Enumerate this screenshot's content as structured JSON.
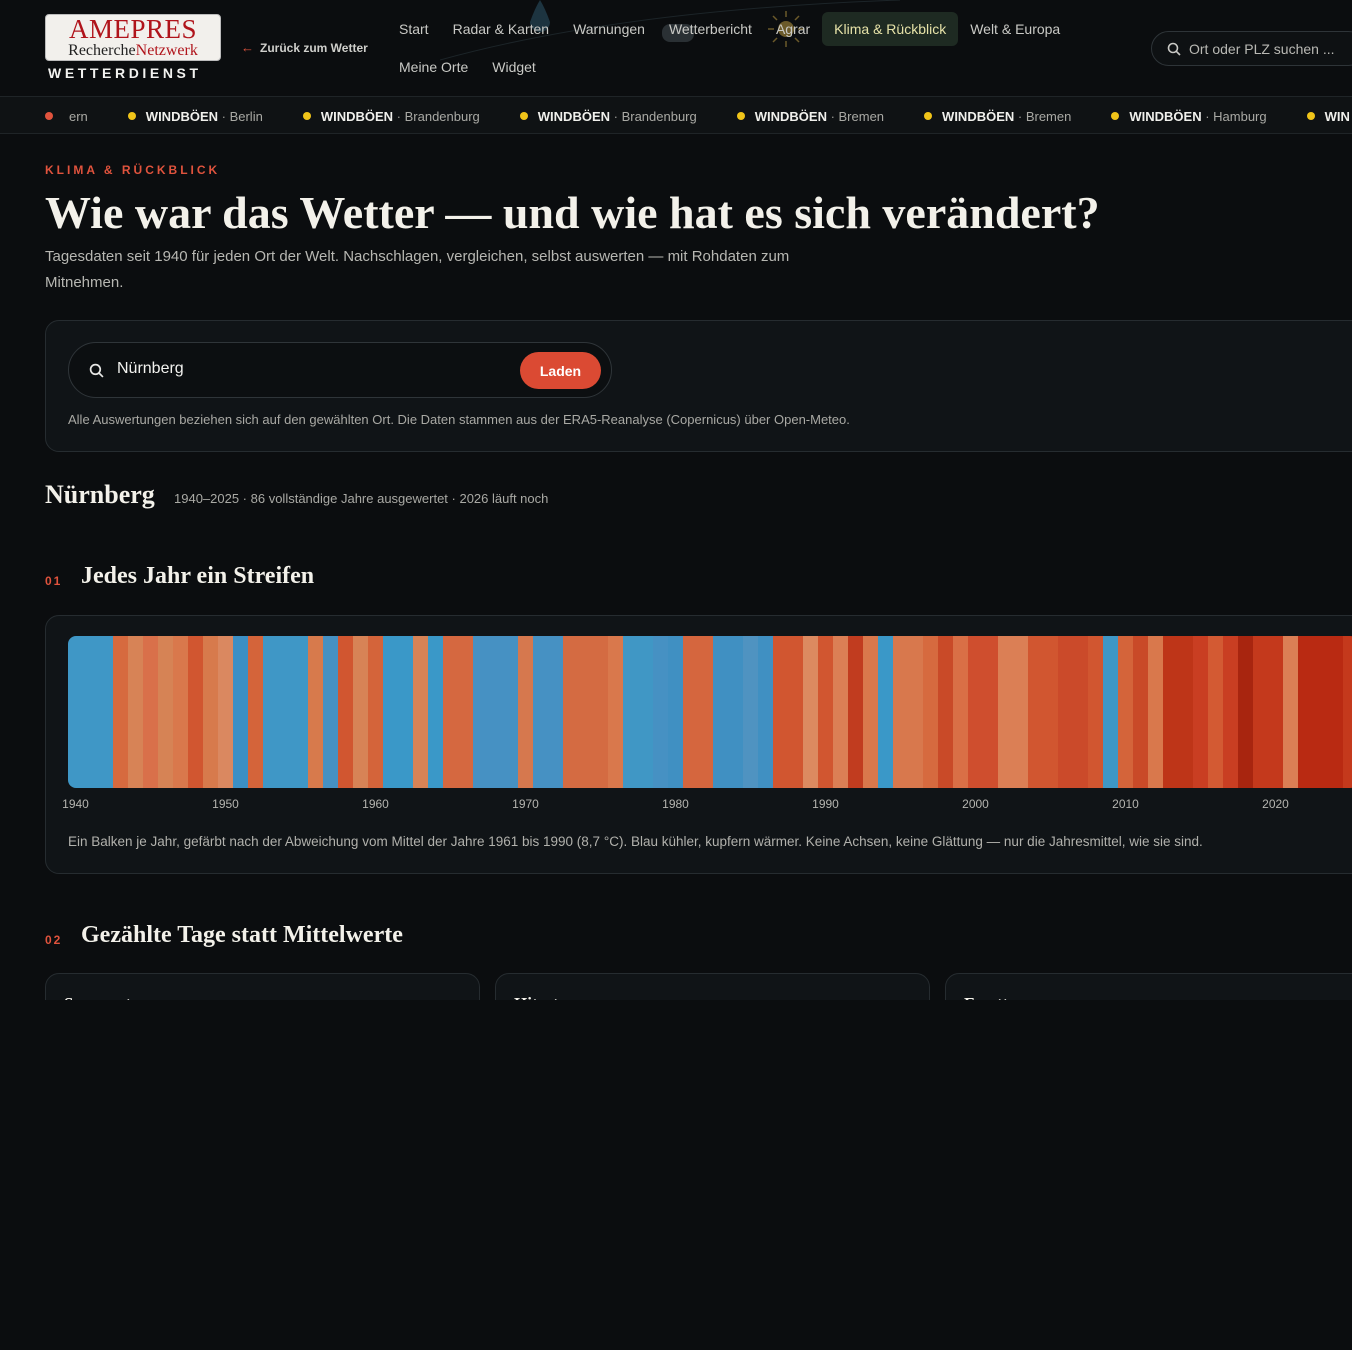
{
  "header": {
    "logo": {
      "brand": "AMEPRES",
      "line2_a": "Recherche",
      "line2_b": "Netzwerk",
      "subtitle": "WETTERDIENST"
    },
    "back_link": "Zurück zum Wetter",
    "nav_row1": [
      "Start",
      "Radar & Karten",
      "Warnungen",
      "Wetterbericht",
      "Agrar",
      "Klima & Rückblick",
      "Welt & Europa"
    ],
    "nav_row2": [
      "Meine Orte",
      "Widget"
    ],
    "active_nav": "Klima & Rückblick",
    "search_placeholder": "Ort oder PLZ suchen ..."
  },
  "ticker": {
    "first_fragment": "ern",
    "items": [
      {
        "type": "WINDBÖEN",
        "region": "Berlin"
      },
      {
        "type": "WINDBÖEN",
        "region": "Brandenburg"
      },
      {
        "type": "WINDBÖEN",
        "region": "Brandenburg"
      },
      {
        "type": "WINDBÖEN",
        "region": "Bremen"
      },
      {
        "type": "WINDBÖEN",
        "region": "Bremen"
      },
      {
        "type": "WINDBÖEN",
        "region": "Hamburg"
      },
      {
        "type": "WIN",
        "region": ""
      }
    ]
  },
  "hero": {
    "eyebrow": "KLIMA & RÜCKBLICK",
    "title": "Wie war das Wetter — und wie hat es sich verändert?",
    "lede": "Tagesdaten seit 1940 für jeden Ort der Welt. Nachschlagen, vergleichen, selbst auswerten — mit Rohdaten zum Mitnehmen."
  },
  "search": {
    "value": "Nürnberg",
    "button": "Laden",
    "note": "Alle Auswertungen beziehen sich auf den gewählten Ort. Die Daten stammen aus der ERA5-Reanalyse (Copernicus) über Open-Meteo."
  },
  "place": {
    "name": "Nürnberg",
    "meta": "1940–2025 · 86 vollständige Jahre ausgewertet · 2026 läuft noch"
  },
  "section1": {
    "num": "01",
    "title": "Jedes Jahr ein Streifen",
    "caption": "Ein Balken je Jahr, gefärbt nach der Abweichung vom Mittel der Jahre 1961 bis 1990 (8,7 °C). Blau kühler, kupfern wärmer. Keine Achsen, keine Glättung — nur die Jahresmittel, wie sie sind."
  },
  "section2": {
    "num": "02",
    "title": "Gezählte Tage statt Mittelwerte",
    "cards": [
      "Sommertage",
      "Hitzetage",
      "Frosttage"
    ]
  },
  "chart_data": {
    "type": "heatmap",
    "x_start": 1940,
    "x_end": 2025,
    "tick_labels": [
      "1940",
      "1950",
      "1960",
      "1970",
      "1980",
      "1990",
      "2000",
      "2010",
      "2020"
    ],
    "stripe_colors": [
      "#3f97c6",
      "#3f97c6",
      "#3f97c6",
      "#d66a3f",
      "#d78356",
      "#d9704a",
      "#d68355",
      "#d9784c",
      "#d15630",
      "#d77a4c",
      "#da8860",
      "#3c8fc4",
      "#d4643a",
      "#3f97c6",
      "#3f97c6",
      "#3f97c6",
      "#d77a4c",
      "#4691c3",
      "#d15630",
      "#d78356",
      "#d4643a",
      "#3a98c8",
      "#3a98c8",
      "#d78356",
      "#3a98c8",
      "#d56840",
      "#d56840",
      "#4691c3",
      "#4691c3",
      "#4691c3",
      "#d6784e",
      "#4691c3",
      "#4691c3",
      "#d46b42",
      "#d46b42",
      "#d46b42",
      "#d9784c",
      "#4097c5",
      "#4097c5",
      "#4691c3",
      "#4090c2",
      "#d5663e",
      "#d5663e",
      "#4090c2",
      "#4090c2",
      "#4f93c1",
      "#4090c2",
      "#d15630",
      "#d15630",
      "#dc8a60",
      "#d15630",
      "#db7f55",
      "#c13c1f",
      "#d9784c",
      "#3a98c8",
      "#d8784d",
      "#d8784d",
      "#d66a3f",
      "#c94a28",
      "#d96f46",
      "#cf4e2e",
      "#cf4e2e",
      "#db7f55",
      "#db7f55",
      "#d15630",
      "#d15630",
      "#cb4a2a",
      "#cb4a2a",
      "#d15630",
      "#3f97c6",
      "#d4643a",
      "#c94a28",
      "#d9784c",
      "#be3518",
      "#be3518",
      "#c93e22",
      "#d35a33",
      "#c93e22",
      "#a8250f",
      "#c4391c",
      "#c4391c",
      "#db7f55",
      "#b92a12",
      "#b92a12",
      "#b92a12",
      "#c4391c"
    ]
  }
}
